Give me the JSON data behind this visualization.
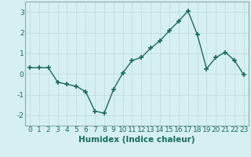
{
  "x": [
    0,
    1,
    2,
    3,
    4,
    5,
    6,
    7,
    8,
    9,
    10,
    11,
    12,
    13,
    14,
    15,
    16,
    17,
    18,
    19,
    20,
    21,
    22,
    23
  ],
  "y": [
    0.3,
    0.3,
    0.3,
    -0.4,
    -0.5,
    -0.6,
    -0.85,
    -1.8,
    -1.9,
    -0.75,
    0.05,
    0.65,
    0.8,
    1.25,
    1.6,
    2.1,
    2.55,
    3.05,
    1.9,
    0.25,
    0.8,
    1.05,
    0.65,
    -0.05
  ],
  "line_color": "#1a6b5a",
  "marker": "+",
  "marker_size": 4,
  "marker_lw": 1.2,
  "bg_color": "#d6f0ef",
  "grid_color": "#c0dcdc",
  "spine_color": "#8aabab",
  "xlabel": "Humidex (Indice chaleur)",
  "ylim": [
    -2.5,
    3.5
  ],
  "xlim": [
    -0.5,
    23.5
  ],
  "yticks": [
    -2,
    -1,
    0,
    1,
    2,
    3
  ],
  "xticks": [
    0,
    1,
    2,
    3,
    4,
    5,
    6,
    7,
    8,
    9,
    10,
    11,
    12,
    13,
    14,
    15,
    16,
    17,
    18,
    19,
    20,
    21,
    22,
    23
  ],
  "xlabel_fontsize": 7.5,
  "tick_fontsize": 6.5,
  "tick_color": "#1a6b5a",
  "line_width": 1.0
}
